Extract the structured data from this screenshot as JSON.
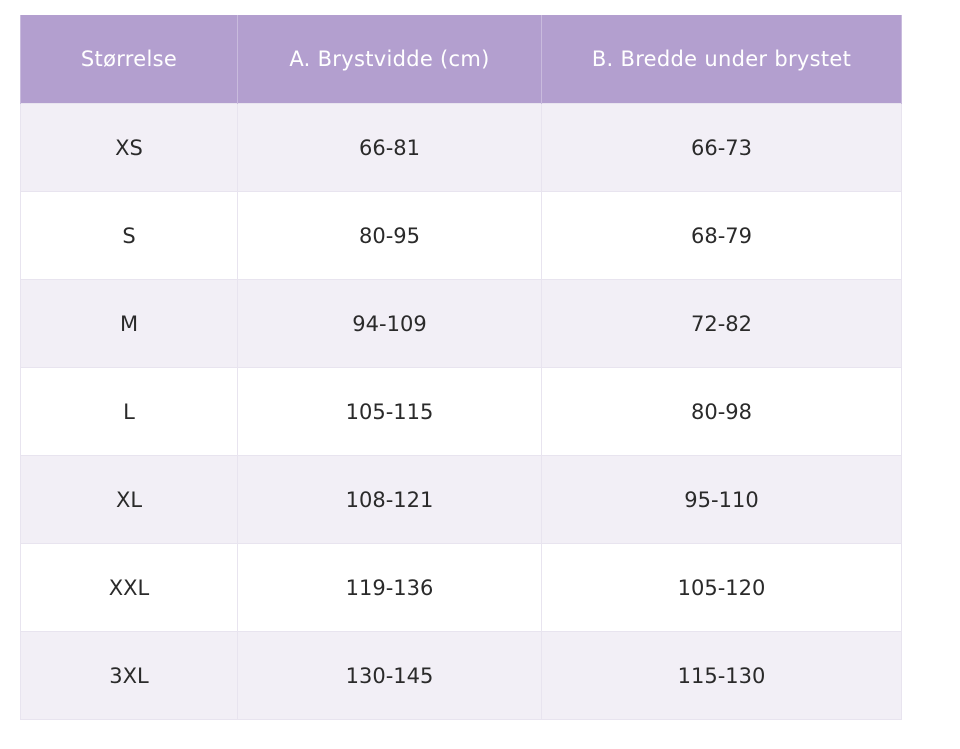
{
  "table": {
    "headers": [
      "Størrelse",
      "A. Brystvidde (cm)",
      "B. Bredde under brystet"
    ],
    "rows": [
      [
        "XS",
        "66-81",
        "66-73"
      ],
      [
        "S",
        "80-95",
        "68-79"
      ],
      [
        "M",
        "94-109",
        "72-82"
      ],
      [
        "L",
        "105-115",
        "80-98"
      ],
      [
        "XL",
        "108-121",
        "95-110"
      ],
      [
        "XXL",
        "119-136",
        "105-120"
      ],
      [
        "3XL",
        "130-145",
        "115-130"
      ]
    ]
  },
  "colors": {
    "header_bg": "#b39fcf",
    "header_text": "#ffffff",
    "row_alt_bg": "#f2eff6",
    "row_bg": "#ffffff",
    "cell_text": "#2a2a2a"
  }
}
